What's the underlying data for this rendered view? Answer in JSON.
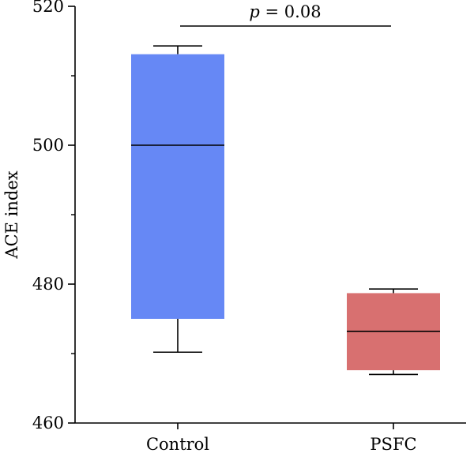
{
  "chart_data": {
    "type": "box",
    "ylabel": "ACE index",
    "ylim": [
      460,
      520
    ],
    "yticks": [
      460,
      480,
      500,
      520
    ],
    "y_minor_step": 10,
    "categories": [
      "Control",
      "PSFC"
    ],
    "boxes": [
      {
        "name": "Control",
        "whisker_low": 470.2,
        "q1": 475.0,
        "median": 500.0,
        "q3": 513.1,
        "whisker_high": 514.3,
        "color": "#6688f5"
      },
      {
        "name": "PSFC",
        "whisker_low": 467.0,
        "q1": 467.6,
        "median": 473.2,
        "q3": 478.7,
        "whisker_high": 479.3,
        "color": "#d87070"
      }
    ],
    "annotation": {
      "p_symbol": "p",
      "text": " = 0.08"
    },
    "grid": false,
    "legend": "none"
  }
}
